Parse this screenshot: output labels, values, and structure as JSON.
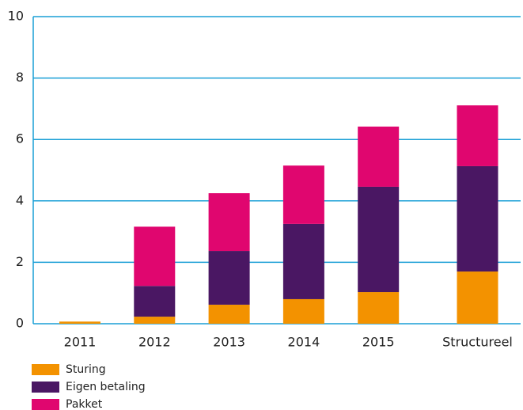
{
  "chart_data": {
    "type": "bar",
    "stacked": true,
    "categories": [
      "2011",
      "2012",
      "2013",
      "2014",
      "2015",
      "Structureel"
    ],
    "series": [
      {
        "name": "Sturing",
        "color": "#f39200",
        "values": [
          0.07,
          0.23,
          0.62,
          0.8,
          1.03,
          1.7
        ]
      },
      {
        "name": "Eigen betaling",
        "color": "#4a1763",
        "values": [
          0,
          1.0,
          1.75,
          2.45,
          3.43,
          3.43
        ]
      },
      {
        "name": "Pakket",
        "color": "#e0066f",
        "values": [
          0,
          1.93,
          1.88,
          1.9,
          1.96,
          1.98
        ]
      }
    ],
    "ylim": [
      0,
      10
    ],
    "yticks": [
      0,
      2,
      4,
      6,
      8,
      10
    ],
    "grid": true,
    "grid_color": "#1a9fd6",
    "legend": "bottom-left"
  }
}
